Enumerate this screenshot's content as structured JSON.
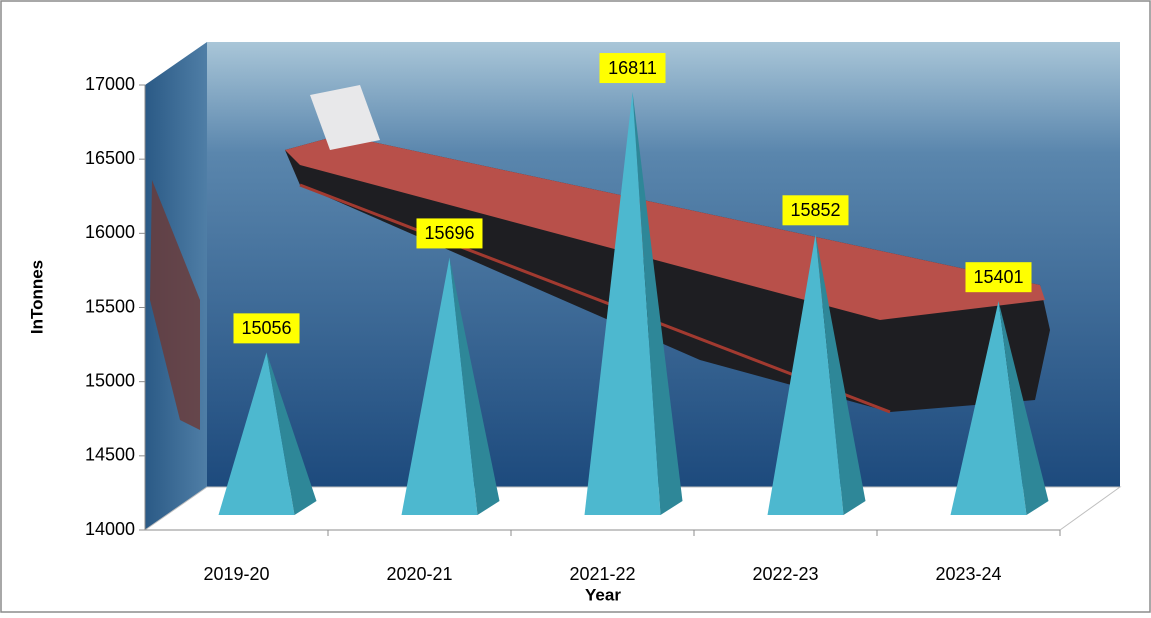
{
  "chart_data": {
    "type": "pyramid",
    "categories": [
      "2019-20",
      "2020-21",
      "2021-22",
      "2022-23",
      "2023-24"
    ],
    "values": [
      15056,
      15696,
      16811,
      15852,
      15401
    ],
    "color": "#4db8cf",
    "ylim": [
      14000,
      17000
    ],
    "yticks": [
      14000,
      14500,
      15000,
      15500,
      16000,
      16500,
      17000
    ],
    "y_label": "InTonnes",
    "x_label": "Year"
  }
}
